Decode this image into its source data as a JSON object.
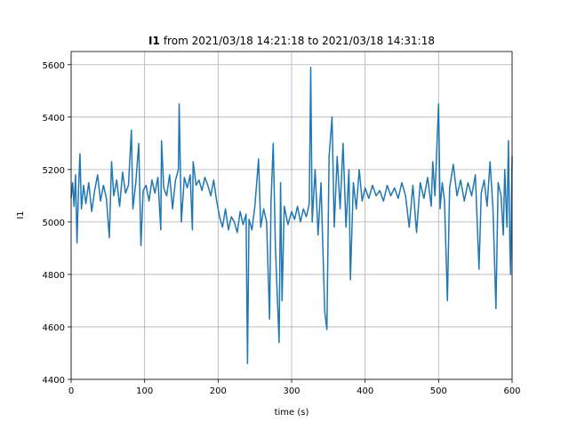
{
  "chart_data": {
    "type": "line",
    "title_bold": "I1",
    "title": "from 2021/03/18 14:21:18 to 2021/03/18 14:31:18",
    "x_label": "time (s)",
    "y_label": "I1",
    "color": "#1f77b4",
    "grid": true,
    "xlim": [
      0,
      600
    ],
    "xticks": [
      0,
      100,
      200,
      300,
      400,
      500,
      600
    ],
    "ylim": [
      4400,
      5650
    ],
    "yticks": [
      4400,
      4600,
      4800,
      5000,
      5200,
      5400,
      5600
    ],
    "x": [
      0,
      2,
      4,
      6,
      8,
      10,
      12,
      14,
      17,
      20,
      24,
      28,
      32,
      36,
      40,
      44,
      48,
      52,
      55,
      58,
      62,
      66,
      70,
      74,
      78,
      82,
      84,
      88,
      92,
      95,
      98,
      102,
      106,
      110,
      114,
      118,
      122,
      123,
      126,
      130,
      134,
      138,
      142,
      146,
      147,
      150,
      154,
      158,
      162,
      165,
      166,
      170,
      174,
      178,
      182,
      186,
      190,
      194,
      198,
      202,
      206,
      210,
      214,
      218,
      222,
      226,
      230,
      234,
      238,
      240,
      242,
      246,
      250,
      255,
      258,
      262,
      266,
      270,
      272,
      275,
      278,
      283,
      285,
      287,
      290,
      295,
      300,
      304,
      308,
      312,
      316,
      320,
      324,
      326,
      328,
      332,
      336,
      340,
      345,
      348,
      351,
      355,
      358,
      362,
      366,
      370,
      374,
      378,
      380,
      384,
      388,
      392,
      396,
      400,
      405,
      410,
      415,
      420,
      425,
      430,
      435,
      440,
      445,
      450,
      455,
      460,
      465,
      470,
      475,
      480,
      485,
      490,
      492,
      495,
      500,
      502,
      505,
      508,
      512,
      515,
      520,
      525,
      530,
      535,
      540,
      545,
      550,
      555,
      558,
      562,
      566,
      570,
      574,
      578,
      581,
      585,
      588,
      590,
      593,
      595,
      597,
      598,
      600
    ],
    "values": [
      5090,
      5150,
      5060,
      5180,
      4920,
      5120,
      5260,
      5050,
      5140,
      5070,
      5150,
      5040,
      5120,
      5180,
      5080,
      5140,
      5090,
      4940,
      5230,
      5100,
      5160,
      5060,
      5190,
      5110,
      5140,
      5350,
      5050,
      5150,
      5300,
      4910,
      5120,
      5140,
      5080,
      5160,
      5110,
      5170,
      4970,
      5310,
      5130,
      5100,
      5180,
      5050,
      5160,
      5200,
      5450,
      5000,
      5170,
      5130,
      5180,
      4970,
      5230,
      5140,
      5160,
      5120,
      5170,
      5140,
      5100,
      5160,
      5080,
      5020,
      4980,
      5050,
      4970,
      5020,
      5000,
      4960,
      5040,
      4990,
      5030,
      4460,
      5010,
      4970,
      5060,
      5240,
      4980,
      5050,
      5000,
      4630,
      5080,
      5300,
      4900,
      4540,
      5150,
      4700,
      5060,
      4990,
      5040,
      5010,
      5060,
      5000,
      5050,
      5020,
      5070,
      5590,
      5000,
      5200,
      4950,
      5150,
      4660,
      4590,
      5250,
      5400,
      4980,
      5250,
      5050,
      5300,
      4980,
      5200,
      4780,
      5150,
      5050,
      5200,
      5080,
      5130,
      5090,
      5140,
      5100,
      5120,
      5080,
      5140,
      5100,
      5130,
      5090,
      5150,
      5100,
      4980,
      5140,
      4960,
      5150,
      5090,
      5170,
      5060,
      5230,
      5100,
      5450,
      5050,
      5150,
      5080,
      4700,
      5130,
      5220,
      5100,
      5160,
      5080,
      5150,
      5100,
      5180,
      4820,
      5110,
      5160,
      5060,
      5230,
      5050,
      4670,
      5150,
      5100,
      4950,
      5200,
      4980,
      5310,
      4900,
      4800,
      5250
    ]
  }
}
